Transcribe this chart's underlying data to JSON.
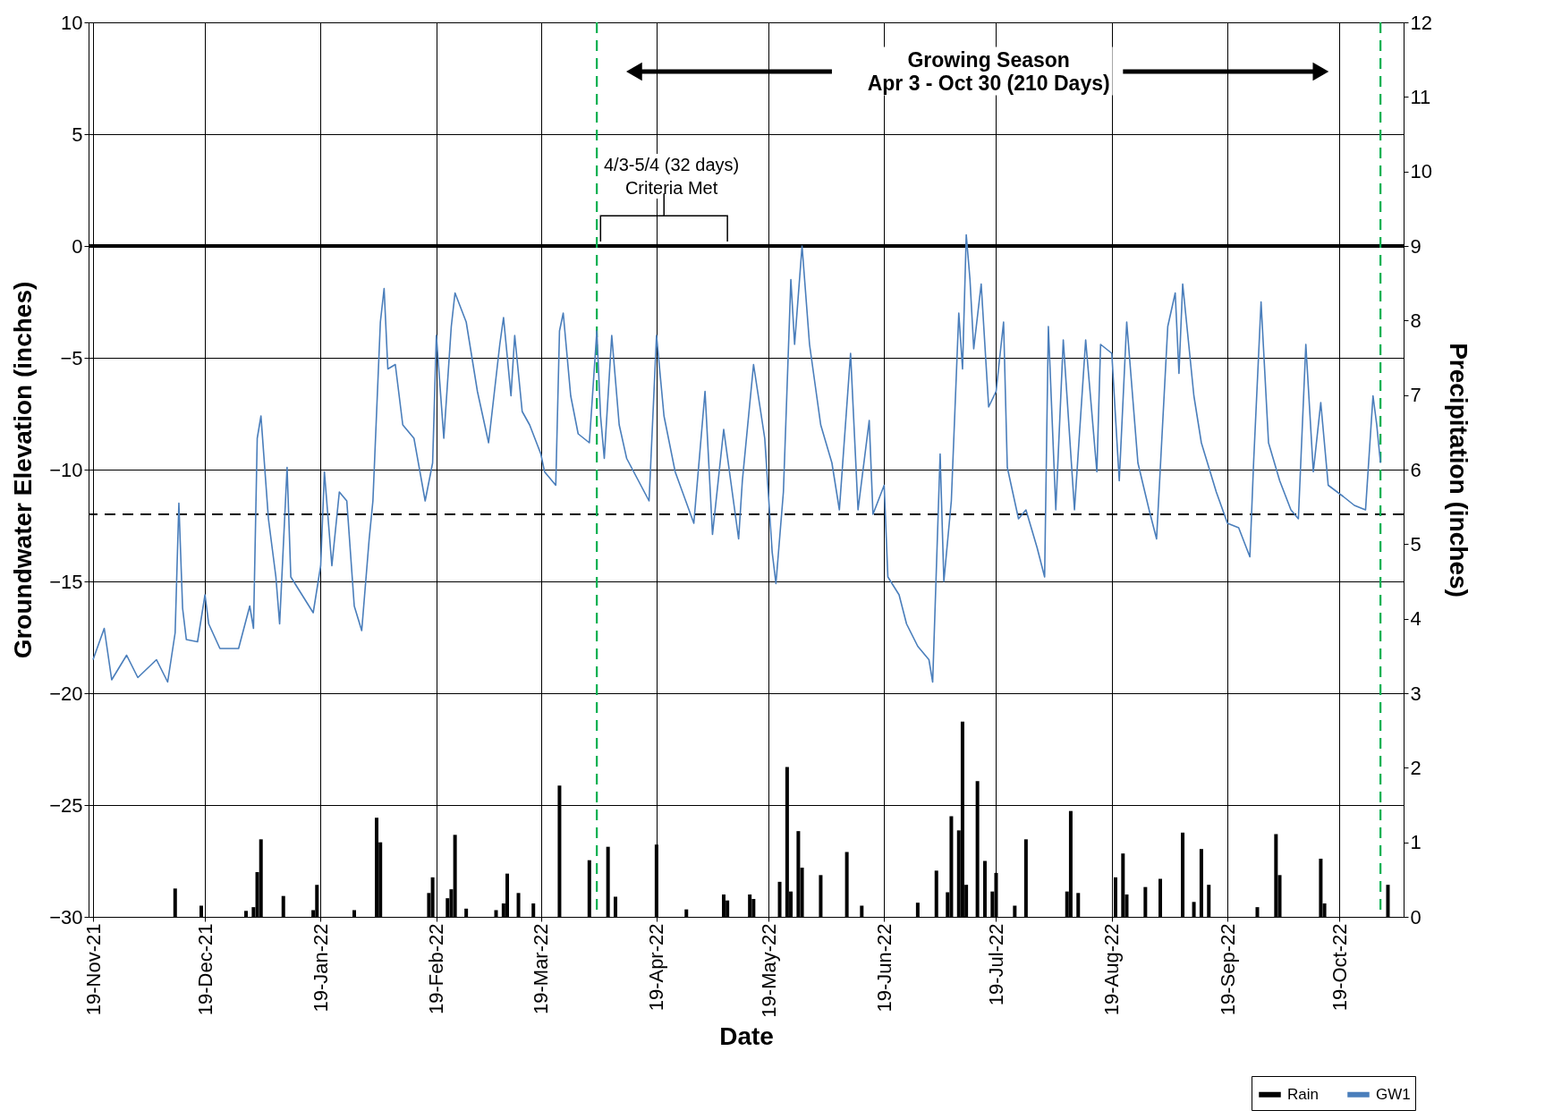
{
  "chart_data": {
    "type": "line",
    "xlabel": "Date",
    "ylabel": "Groundwater Elevation (inches)",
    "y2label": "Precipitation (inches)",
    "annotations": [
      "Growing Season\nApr 3 - Oct 30 (210 Days)",
      "4/3-5/4 (32 days)\nCriteria Met"
    ],
    "xlim": [
      "2021-11-19",
      "2022-11-04"
    ],
    "xticks": [
      {
        "value": "2021-11-19",
        "label": "19-Nov-21"
      },
      {
        "value": "2021-12-19",
        "label": "19-Dec-21"
      },
      {
        "value": "2022-01-19",
        "label": "19-Jan-22"
      },
      {
        "value": "2022-02-19",
        "label": "19-Feb-22"
      },
      {
        "value": "2022-03-19",
        "label": "19-Mar-22"
      },
      {
        "value": "2022-04-19",
        "label": "19-Apr-22"
      },
      {
        "value": "2022-05-19",
        "label": "19-May-22"
      },
      {
        "value": "2022-06-19",
        "label": "19-Jun-22"
      },
      {
        "value": "2022-07-19",
        "label": "19-Jul-22"
      },
      {
        "value": "2022-08-19",
        "label": "19-Aug-22"
      },
      {
        "value": "2022-09-19",
        "label": "19-Sep-22"
      },
      {
        "value": "2022-10-19",
        "label": "19-Oct-22"
      }
    ],
    "ylim": [
      -30,
      10
    ],
    "yticks": [
      -30,
      -25,
      -20,
      -15,
      -10,
      -5,
      0,
      5,
      10
    ],
    "y2lim": [
      0,
      12
    ],
    "y2ticks": [
      0,
      1,
      2,
      3,
      4,
      5,
      6,
      7,
      8,
      9,
      10,
      11,
      12
    ],
    "grid": true,
    "legend": "bottom right",
    "ref_lines": [
      {
        "axis": "y",
        "value": 0,
        "color": "#000000",
        "line_style": "solid"
      },
      {
        "axis": "y",
        "value": -12,
        "color": "#000000",
        "line_style": "dashed"
      },
      {
        "axis": "x",
        "value": "2022-04-03",
        "color": "#00b050",
        "line_style": "dashed"
      },
      {
        "axis": "x",
        "value": "2022-10-30",
        "color": "#00b050",
        "line_style": "dashed"
      }
    ],
    "series": [
      {
        "name": "Rain",
        "type": "bar",
        "axis": "y2",
        "color": "#000000",
        "x": [
          "2021-12-11",
          "2021-12-18",
          "2021-12-30",
          "2022-01-01",
          "2022-01-02",
          "2022-01-03",
          "2022-01-09",
          "2022-01-17",
          "2022-01-18",
          "2022-01-28",
          "2022-02-03",
          "2022-02-04",
          "2022-02-17",
          "2022-02-18",
          "2022-02-22",
          "2022-02-23",
          "2022-02-24",
          "2022-02-27",
          "2022-03-07",
          "2022-03-09",
          "2022-03-10",
          "2022-03-13",
          "2022-03-17",
          "2022-03-24",
          "2022-04-01",
          "2022-04-06",
          "2022-04-08",
          "2022-04-19",
          "2022-04-27",
          "2022-05-07",
          "2022-05-08",
          "2022-05-14",
          "2022-05-15",
          "2022-05-22",
          "2022-05-24",
          "2022-05-25",
          "2022-05-27",
          "2022-05-28",
          "2022-06-02",
          "2022-06-09",
          "2022-06-13",
          "2022-06-28",
          "2022-07-03",
          "2022-07-06",
          "2022-07-07",
          "2022-07-09",
          "2022-07-10",
          "2022-07-11",
          "2022-07-14",
          "2022-07-16",
          "2022-07-18",
          "2022-07-19",
          "2022-07-24",
          "2022-07-27",
          "2022-08-07",
          "2022-08-08",
          "2022-08-10",
          "2022-08-20",
          "2022-08-22",
          "2022-08-23",
          "2022-08-28",
          "2022-09-01",
          "2022-09-07",
          "2022-09-10",
          "2022-09-12",
          "2022-09-14",
          "2022-09-27",
          "2022-10-02",
          "2022-10-03",
          "2022-10-14",
          "2022-10-15",
          "2022-11-01"
        ],
        "values": [
          0.38,
          0.15,
          0.08,
          0.13,
          0.6,
          1.04,
          0.28,
          0.09,
          0.43,
          0.09,
          1.33,
          1.0,
          0.32,
          0.53,
          0.25,
          0.37,
          1.1,
          0.11,
          0.09,
          0.18,
          0.58,
          0.32,
          0.18,
          1.76,
          0.76,
          0.94,
          0.27,
          0.97,
          0.1,
          0.3,
          0.22,
          0.3,
          0.24,
          0.47,
          2.01,
          0.34,
          1.15,
          0.66,
          0.56,
          0.87,
          0.15,
          0.19,
          0.62,
          0.33,
          1.35,
          1.16,
          2.62,
          0.43,
          1.82,
          0.75,
          0.34,
          0.59,
          0.15,
          1.04,
          0.34,
          1.42,
          0.32,
          0.53,
          0.85,
          0.3,
          0.4,
          0.51,
          1.13,
          0.2,
          0.91,
          0.43,
          0.13,
          1.11,
          0.56,
          0.78,
          0.18,
          0.43
        ]
      },
      {
        "name": "GW1",
        "color": "#4a7ebb",
        "x": [
          "2021-11-19",
          "2021-11-22",
          "2021-11-24",
          "2021-11-28",
          "2021-12-01",
          "2021-12-06",
          "2021-12-09",
          "2021-12-11",
          "2021-12-12",
          "2021-12-13",
          "2021-12-14",
          "2021-12-17",
          "2021-12-19",
          "2021-12-20",
          "2021-12-23",
          "2021-12-28",
          "2021-12-31",
          "2022-01-01",
          "2022-01-02",
          "2022-01-03",
          "2022-01-05",
          "2022-01-07",
          "2022-01-08",
          "2022-01-10",
          "2022-01-11",
          "2022-01-14",
          "2022-01-17",
          "2022-01-19",
          "2022-01-20",
          "2022-01-22",
          "2022-01-24",
          "2022-01-26",
          "2022-01-28",
          "2022-01-30",
          "2022-02-01",
          "2022-02-02",
          "2022-02-04",
          "2022-02-05",
          "2022-02-06",
          "2022-02-08",
          "2022-02-10",
          "2022-02-13",
          "2022-02-16",
          "2022-02-18",
          "2022-02-19",
          "2022-02-21",
          "2022-02-23",
          "2022-02-24",
          "2022-02-27",
          "2022-03-02",
          "2022-03-05",
          "2022-03-08",
          "2022-03-09",
          "2022-03-11",
          "2022-03-12",
          "2022-03-14",
          "2022-03-16",
          "2022-03-19",
          "2022-03-20",
          "2022-03-23",
          "2022-03-24",
          "2022-03-25",
          "2022-03-27",
          "2022-03-29",
          "2022-04-01",
          "2022-04-03",
          "2022-04-04",
          "2022-04-05",
          "2022-04-07",
          "2022-04-09",
          "2022-04-11",
          "2022-04-17",
          "2022-04-19",
          "2022-04-21",
          "2022-04-24",
          "2022-04-29",
          "2022-05-02",
          "2022-05-04",
          "2022-05-07",
          "2022-05-11",
          "2022-05-12",
          "2022-05-15",
          "2022-05-18",
          "2022-05-20",
          "2022-05-21",
          "2022-05-23",
          "2022-05-25",
          "2022-05-26",
          "2022-05-28",
          "2022-05-30",
          "2022-06-02",
          "2022-06-05",
          "2022-06-07",
          "2022-06-10",
          "2022-06-12",
          "2022-06-15",
          "2022-06-16",
          "2022-06-19",
          "2022-06-20",
          "2022-06-23",
          "2022-06-25",
          "2022-06-28",
          "2022-07-01",
          "2022-07-02",
          "2022-07-04",
          "2022-07-05",
          "2022-07-07",
          "2022-07-09",
          "2022-07-10",
          "2022-07-11",
          "2022-07-12",
          "2022-07-13",
          "2022-07-15",
          "2022-07-17",
          "2022-07-19",
          "2022-07-21",
          "2022-07-22",
          "2022-07-25",
          "2022-07-27",
          "2022-07-30",
          "2022-08-01",
          "2022-08-02",
          "2022-08-04",
          "2022-08-06",
          "2022-08-09",
          "2022-08-12",
          "2022-08-15",
          "2022-08-16",
          "2022-08-19",
          "2022-08-21",
          "2022-08-23",
          "2022-08-26",
          "2022-08-29",
          "2022-08-31",
          "2022-09-03",
          "2022-09-05",
          "2022-09-06",
          "2022-09-07",
          "2022-09-10",
          "2022-09-12",
          "2022-09-16",
          "2022-09-19",
          "2022-09-22",
          "2022-09-25",
          "2022-09-26",
          "2022-09-28",
          "2022-09-30",
          "2022-10-03",
          "2022-10-06",
          "2022-10-08",
          "2022-10-10",
          "2022-10-12",
          "2022-10-14",
          "2022-10-16",
          "2022-10-20",
          "2022-10-23",
          "2022-10-26",
          "2022-10-28",
          "2022-10-29",
          "2022-10-30"
        ],
        "values": [
          -18.5,
          -17.1,
          -19.4,
          -18.3,
          -19.3,
          -18.5,
          -19.5,
          -17.3,
          -11.5,
          -16.2,
          -17.6,
          -17.7,
          -15.6,
          -16.9,
          -18.0,
          -18.0,
          -16.1,
          -17.1,
          -8.6,
          -7.6,
          -12.2,
          -14.8,
          -16.9,
          -9.9,
          -14.8,
          -15.6,
          -16.4,
          -14.3,
          -10.1,
          -14.3,
          -11.0,
          -11.4,
          -16.1,
          -17.2,
          -13.1,
          -11.4,
          -3.4,
          -1.9,
          -5.5,
          -5.3,
          -8.0,
          -8.6,
          -11.4,
          -9.7,
          -4.0,
          -8.6,
          -3.6,
          -2.1,
          -3.4,
          -6.5,
          -8.8,
          -4.4,
          -3.2,
          -6.7,
          -4.0,
          -7.4,
          -8.0,
          -9.3,
          -10.1,
          -10.7,
          -3.8,
          -3.0,
          -6.7,
          -8.4,
          -8.8,
          -3.8,
          -7.6,
          -9.5,
          -4.0,
          -8.0,
          -9.5,
          -11.4,
          -4.0,
          -7.6,
          -10.1,
          -12.4,
          -6.5,
          -12.9,
          -8.2,
          -13.1,
          -10.5,
          -5.3,
          -8.6,
          -13.7,
          -15.1,
          -11.0,
          -1.5,
          -4.4,
          0.0,
          -4.4,
          -8.0,
          -9.7,
          -11.8,
          -4.8,
          -11.8,
          -7.8,
          -12.0,
          -10.7,
          -14.8,
          -15.6,
          -16.9,
          -17.9,
          -18.5,
          -19.5,
          -9.3,
          -15.0,
          -11.4,
          -3.0,
          -5.5,
          0.5,
          -1.5,
          -4.6,
          -1.7,
          -7.2,
          -6.5,
          -3.4,
          -9.9,
          -12.2,
          -11.8,
          -13.5,
          -14.8,
          -3.6,
          -11.8,
          -4.2,
          -11.8,
          -4.2,
          -10.1,
          -4.4,
          -4.8,
          -10.5,
          -3.4,
          -9.7,
          -11.8,
          -13.1,
          -3.6,
          -2.1,
          -5.7,
          -1.7,
          -6.7,
          -8.8,
          -11.0,
          -12.4,
          -12.6,
          -13.9,
          -9.7,
          -2.5,
          -8.8,
          -10.5,
          -11.8,
          -12.2,
          -4.4,
          -10.1,
          -7.0,
          -10.7,
          -11.2,
          -11.6,
          -11.8,
          -6.7,
          -8.0,
          -9.7
        ]
      }
    ]
  }
}
